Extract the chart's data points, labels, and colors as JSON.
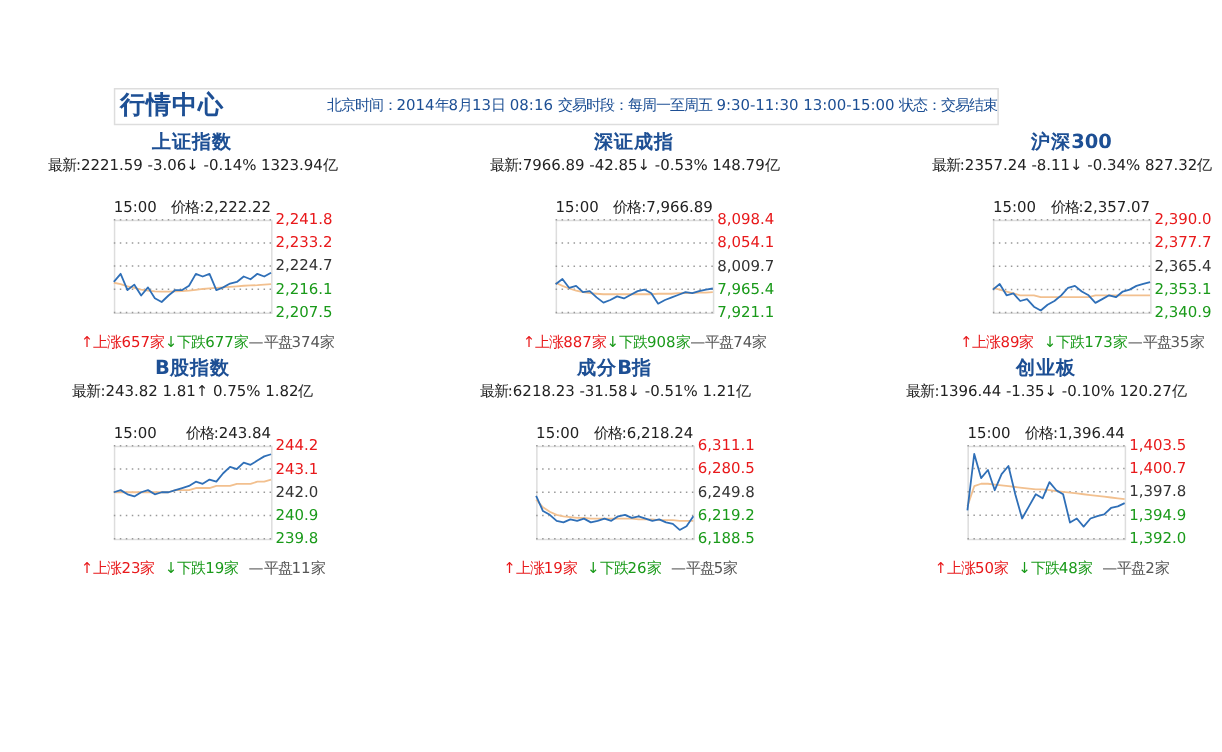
{
  "chart_data": [
    {
      "type": "other",
      "title": "行情中心",
      "annotations": [
        "北京时间：2014年8月13日 08:16 交易时段：每周一至周五 9:30-11:30 13:00-15:00 状态：交易结束"
      ]
    },
    {
      "type": "line",
      "title": "上证指数",
      "subtitle": "最新:2221.59 -3.06↓ -0.14% 1323.94亿",
      "annotations": [
        "15:00",
        "价格:2,222.22",
        "↑上涨657家",
        "↓下跌677家",
        "—平盘374家"
      ],
      "categories": [
        null,
        null,
        null,
        null,
        null,
        null,
        null,
        null,
        null,
        null,
        null,
        null,
        null,
        null,
        null,
        null,
        null,
        null,
        null,
        null,
        null,
        null,
        null,
        null
      ],
      "series": [
        {
          "color": "#2f6fb7",
          "values": [
            2218.8,
            2221.8,
            2215.8,
            2217.8,
            2213.8,
            2216.8,
            2212.8,
            2211.4,
            2213.8,
            2215.8,
            2215.8,
            2217.4,
            2221.8,
            2220.8,
            2221.8,
            2215.8,
            2216.8,
            2218.2,
            2218.8,
            2220.8,
            2219.8,
            2221.8,
            2220.8,
            2222.2
          ]
        },
        {
          "color": "#f2c08f",
          "values": [
            2218.5,
            2218.0,
            2217.2,
            2216.6,
            2216.0,
            2215.6,
            2215.3,
            2215.2,
            2215.2,
            2215.3,
            2215.4,
            2215.6,
            2215.9,
            2216.2,
            2216.4,
            2216.6,
            2216.8,
            2217.0,
            2217.2,
            2217.4,
            2217.5,
            2217.6,
            2217.8,
            2218.0
          ]
        }
      ],
      "ylim": [
        2207.5,
        2241.8
      ],
      "yticks": [
        {
          "value": 2241.8,
          "label": "2,241.8"
        },
        {
          "value": 2233.2,
          "label": "2,233.2"
        },
        {
          "value": 2224.7,
          "label": "2,224.7"
        },
        {
          "value": 2216.1,
          "label": "2,216.1"
        },
        {
          "value": 2207.5,
          "label": "2,207.5"
        }
      ],
      "grid": "y",
      "tick_labels": "y"
    },
    {
      "type": "line",
      "title": "深证成指",
      "subtitle": "最新:7966.89 -42.85↓ -0.53% 148.79亿",
      "annotations": [
        "15:00",
        "价格:7,966.89",
        "↑上涨887家",
        "↓下跌908家",
        "—平盘74家"
      ],
      "categories": [
        null,
        null,
        null,
        null,
        null,
        null,
        null,
        null,
        null,
        null,
        null,
        null,
        null,
        null,
        null,
        null,
        null,
        null,
        null,
        null,
        null,
        null,
        null,
        null
      ],
      "series": [
        {
          "color": "#2f6fb7",
          "values": [
            7975,
            7985,
            7968,
            7972,
            7960,
            7962,
            7950,
            7940,
            7945,
            7952,
            7948,
            7955,
            7962,
            7965,
            7958,
            7938,
            7945,
            7950,
            7955,
            7960,
            7958,
            7962,
            7965,
            7967
          ]
        },
        {
          "color": "#f2c08f",
          "values": [
            7978,
            7972,
            7967,
            7963,
            7960,
            7958,
            7957,
            7956,
            7956,
            7956,
            7956,
            7956,
            7956,
            7956,
            7956,
            7957,
            7957,
            7957,
            7958,
            7958,
            7958,
            7959,
            7959,
            7960
          ]
        }
      ],
      "ylim": [
        7921.1,
        8098.4
      ],
      "yticks": [
        {
          "value": 8098.4,
          "label": "8,098.4"
        },
        {
          "value": 8054.1,
          "label": "8,054.1"
        },
        {
          "value": 8009.7,
          "label": "8,009.7"
        },
        {
          "value": 7965.4,
          "label": "7,965.4"
        },
        {
          "value": 7921.1,
          "label": "7,921.1"
        }
      ],
      "grid": "y",
      "tick_labels": "y"
    },
    {
      "type": "line",
      "title": "沪深300",
      "subtitle": "最新:2357.24 -8.11↓ -0.34% 827.32亿",
      "annotations": [
        "15:00",
        "价格:2,357.07",
        "↑上涨89家",
        "↓下跌173家",
        "—平盘35家"
      ],
      "categories": [
        null,
        null,
        null,
        null,
        null,
        null,
        null,
        null,
        null,
        null,
        null,
        null,
        null,
        null,
        null,
        null,
        null,
        null,
        null,
        null,
        null,
        null,
        null,
        null
      ],
      "series": [
        {
          "color": "#2f6fb7",
          "values": [
            2353,
            2356,
            2350,
            2351,
            2347,
            2348,
            2344,
            2342,
            2345,
            2347,
            2350,
            2354,
            2355,
            2352,
            2350,
            2346,
            2348,
            2350,
            2349,
            2352,
            2353,
            2355,
            2356,
            2357
          ]
        },
        {
          "color": "#f2c08f",
          "values": [
            2354,
            2353,
            2352,
            2351,
            2350,
            2350,
            2350,
            2349,
            2349,
            2349,
            2349,
            2349,
            2349,
            2349,
            2349,
            2350,
            2350,
            2350,
            2350,
            2350,
            2350,
            2350,
            2350,
            2350
          ]
        }
      ],
      "ylim": [
        2340.9,
        2390.0
      ],
      "yticks": [
        {
          "value": 2390.0,
          "label": "2,390.0"
        },
        {
          "value": 2377.7,
          "label": "2,377.7"
        },
        {
          "value": 2365.4,
          "label": "2,365.4"
        },
        {
          "value": 2353.1,
          "label": "2,353.1"
        },
        {
          "value": 2340.9,
          "label": "2,340.9"
        }
      ],
      "grid": "y",
      "tick_labels": "y"
    },
    {
      "type": "line",
      "title": "B股指数",
      "subtitle": "最新:243.82 1.81↑ 0.75% 1.82亿",
      "annotations": [
        "15:00",
        "价格:243.84",
        "↑上涨23家",
        "↓下跌19家",
        "—平盘11家"
      ],
      "categories": [
        null,
        null,
        null,
        null,
        null,
        null,
        null,
        null,
        null,
        null,
        null,
        null,
        null,
        null,
        null,
        null,
        null,
        null,
        null,
        null,
        null,
        null,
        null,
        null
      ],
      "series": [
        {
          "color": "#2f6fb7",
          "values": [
            242.0,
            242.1,
            241.9,
            241.8,
            242.0,
            242.1,
            241.9,
            242.0,
            242.0,
            242.1,
            242.2,
            242.3,
            242.5,
            242.4,
            242.6,
            242.5,
            242.9,
            243.2,
            243.1,
            243.4,
            243.3,
            243.5,
            243.7,
            243.8
          ]
        },
        {
          "color": "#f2c08f",
          "values": [
            242.0,
            242.0,
            242.0,
            242.0,
            242.0,
            242.0,
            242.0,
            242.0,
            242.0,
            242.1,
            242.1,
            242.1,
            242.2,
            242.2,
            242.2,
            242.3,
            242.3,
            242.3,
            242.4,
            242.4,
            242.4,
            242.5,
            242.5,
            242.6
          ]
        }
      ],
      "ylim": [
        239.8,
        244.2
      ],
      "yticks": [
        {
          "value": 244.2,
          "label": "244.2"
        },
        {
          "value": 243.1,
          "label": "243.1"
        },
        {
          "value": 242.0,
          "label": "242.0"
        },
        {
          "value": 240.9,
          "label": "240.9"
        },
        {
          "value": 239.8,
          "label": "239.8"
        }
      ],
      "grid": "y",
      "tick_labels": "y"
    },
    {
      "type": "line",
      "title": "成分B指",
      "subtitle": "最新:6218.23 -31.58↓ -0.51% 1.21亿",
      "annotations": [
        "15:00",
        "价格:6,218.24",
        "↑上涨19家",
        "↓下跌26家",
        "—平盘5家"
      ],
      "categories": [
        null,
        null,
        null,
        null,
        null,
        null,
        null,
        null,
        null,
        null,
        null,
        null,
        null,
        null,
        null,
        null,
        null,
        null,
        null,
        null,
        null,
        null,
        null,
        null
      ],
      "series": [
        {
          "color": "#2f6fb7",
          "values": [
            6245,
            6225,
            6220,
            6212,
            6210,
            6214,
            6212,
            6215,
            6210,
            6212,
            6215,
            6212,
            6218,
            6220,
            6216,
            6218,
            6215,
            6212,
            6214,
            6210,
            6208,
            6200,
            6205,
            6218
          ]
        },
        {
          "color": "#f2c08f",
          "values": [
            6240,
            6230,
            6224,
            6220,
            6218,
            6217,
            6216,
            6216,
            6215,
            6215,
            6215,
            6215,
            6215,
            6215,
            6215,
            6214,
            6214,
            6214,
            6213,
            6213,
            6213,
            6212,
            6212,
            6212
          ]
        }
      ],
      "ylim": [
        6188.5,
        6311.1
      ],
      "yticks": [
        {
          "value": 6311.1,
          "label": "6,311.1"
        },
        {
          "value": 6280.5,
          "label": "6,280.5"
        },
        {
          "value": 6249.8,
          "label": "6,249.8"
        },
        {
          "value": 6219.2,
          "label": "6,219.2"
        },
        {
          "value": 6188.5,
          "label": "6,188.5"
        }
      ],
      "grid": "y",
      "tick_labels": "y"
    },
    {
      "type": "line",
      "title": "创业板",
      "subtitle": "最新:1396.44 -1.35↓ -0.10% 120.27亿",
      "annotations": [
        "15:00",
        "价格:1,396.44",
        "↑上涨50家",
        "↓下跌48家",
        "—平盘2家"
      ],
      "categories": [
        null,
        null,
        null,
        null,
        null,
        null,
        null,
        null,
        null,
        null,
        null,
        null,
        null,
        null,
        null,
        null,
        null,
        null,
        null,
        null,
        null,
        null,
        null,
        null
      ],
      "series": [
        {
          "color": "#2f6fb7",
          "values": [
            1395.5,
            1402.5,
            1399.5,
            1400.5,
            1398,
            1400,
            1401,
            1397.5,
            1394.5,
            1396,
            1397.5,
            1397,
            1399,
            1398,
            1397.5,
            1394,
            1394.5,
            1393.5,
            1394.5,
            1394.8,
            1395,
            1395.8,
            1396,
            1396.4
          ]
        },
        {
          "color": "#f2c08f",
          "values": [
            1396,
            1398.5,
            1398.8,
            1398.8,
            1398.7,
            1398.6,
            1398.5,
            1398.4,
            1398.3,
            1398.2,
            1398.1,
            1398.1,
            1398.0,
            1397.9,
            1397.8,
            1397.7,
            1397.6,
            1397.5,
            1397.4,
            1397.3,
            1397.2,
            1397.1,
            1397.0,
            1396.9
          ]
        }
      ],
      "ylim": [
        1392.0,
        1403.5
      ],
      "yticks": [
        {
          "value": 1403.5,
          "label": "1,403.5"
        },
        {
          "value": 1400.7,
          "label": "1,400.7"
        },
        {
          "value": 1397.8,
          "label": "1,397.8"
        },
        {
          "value": 1394.9,
          "label": "1,394.9"
        },
        {
          "value": 1392.0,
          "label": "1,392.0"
        }
      ],
      "grid": "y",
      "tick_labels": "y"
    }
  ]
}
